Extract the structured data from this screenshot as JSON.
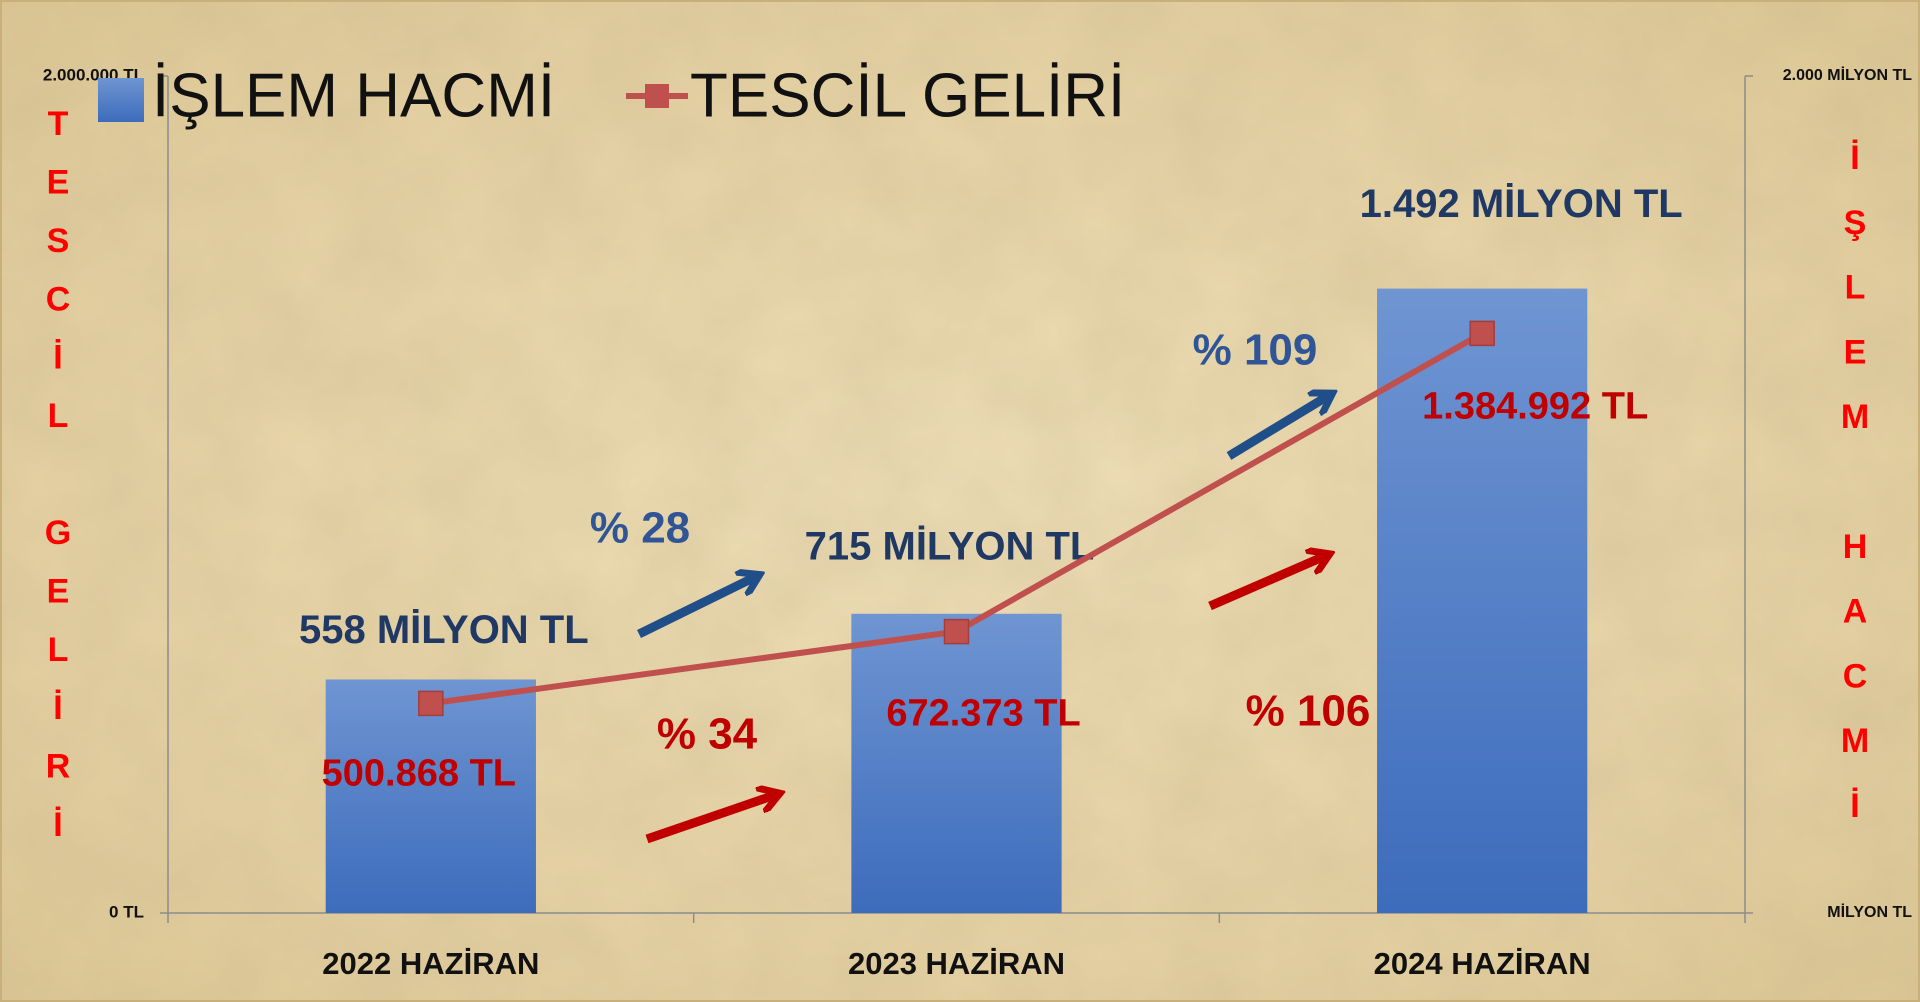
{
  "chart_data": {
    "type": "bar_line",
    "categories": [
      "2022 HAZİRAN",
      "2023 HAZİRAN",
      "2024 HAZİRAN"
    ],
    "series": [
      {
        "name": "İŞLEM HACMİ",
        "type": "bar",
        "axis": "y2",
        "color": "#4a7bc8",
        "values": [
          558,
          715,
          1492
        ],
        "value_labels": [
          "558 MİLYON TL",
          "715 MİLYON TL",
          "1.492 MİLYON TL"
        ]
      },
      {
        "name": "TESCİL GELİRİ",
        "type": "line",
        "axis": "y",
        "color": "#c0504d",
        "values": [
          500868,
          672373,
          1384992
        ],
        "value_labels": [
          "500.868 TL",
          "672.373 TL",
          "1.384.992 TL"
        ]
      }
    ],
    "ylabel": "TESCİL GELİRİ",
    "y2label": "İŞLEM HACMİ",
    "ylim": [
      0,
      2000000
    ],
    "yticks": [
      {
        "value": 0,
        "label": "0 TL"
      },
      {
        "value": 2000000,
        "label": "2.000.000 TL"
      }
    ],
    "y2lim": [
      0,
      2000
    ],
    "y2ticks": [
      {
        "value": 0,
        "label": "MİLYON TL"
      },
      {
        "value": 2000,
        "label": "2.000 MİLYON TL"
      }
    ],
    "annotations": [
      {
        "text": "% 28",
        "color": "#2f5597"
      },
      {
        "text": "% 109",
        "color": "#2f5597"
      },
      {
        "text": "% 34",
        "color": "#c00000"
      },
      {
        "text": "% 106",
        "color": "#c00000"
      }
    ],
    "legend": "top-left",
    "grid": false
  }
}
